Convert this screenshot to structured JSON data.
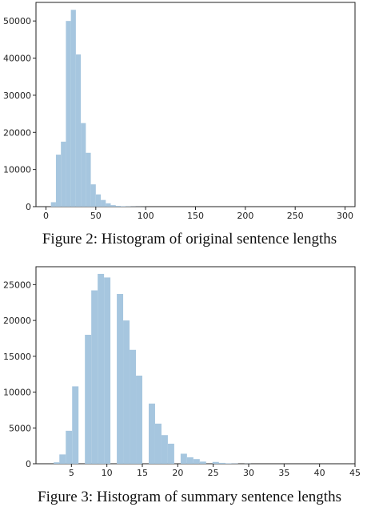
{
  "colors": {
    "bar": "#a6c6df",
    "axis": "#222222",
    "background": "#ffffff"
  },
  "chart_data": [
    {
      "type": "bar",
      "title": "",
      "xlabel": "",
      "ylabel": "",
      "caption": "Figure 2: Histogram of original sentence lengths",
      "xlim": [
        -10,
        310
      ],
      "ylim": [
        0,
        55000
      ],
      "xticks": [
        0,
        50,
        100,
        150,
        200,
        250,
        300
      ],
      "yticks": [
        0,
        10000,
        20000,
        30000,
        40000,
        50000
      ],
      "grid": false,
      "bins": [
        {
          "x0": 5,
          "x1": 10,
          "value": 1200
        },
        {
          "x0": 10,
          "x1": 15,
          "value": 14000
        },
        {
          "x0": 15,
          "x1": 20,
          "value": 17500
        },
        {
          "x0": 20,
          "x1": 25,
          "value": 50000
        },
        {
          "x0": 25,
          "x1": 30,
          "value": 53000
        },
        {
          "x0": 30,
          "x1": 35,
          "value": 41000
        },
        {
          "x0": 35,
          "x1": 40,
          "value": 22500
        },
        {
          "x0": 40,
          "x1": 45,
          "value": 14500
        },
        {
          "x0": 45,
          "x1": 50,
          "value": 6000
        },
        {
          "x0": 50,
          "x1": 55,
          "value": 3300
        },
        {
          "x0": 55,
          "x1": 60,
          "value": 1800
        },
        {
          "x0": 60,
          "x1": 65,
          "value": 900
        },
        {
          "x0": 65,
          "x1": 70,
          "value": 400
        },
        {
          "x0": 70,
          "x1": 75,
          "value": 200
        },
        {
          "x0": 75,
          "x1": 80,
          "value": 120
        },
        {
          "x0": 80,
          "x1": 85,
          "value": 80
        },
        {
          "x0": 85,
          "x1": 90,
          "value": 50
        },
        {
          "x0": 90,
          "x1": 95,
          "value": 30
        },
        {
          "x0": 95,
          "x1": 100,
          "value": 20
        }
      ]
    },
    {
      "type": "bar",
      "title": "",
      "xlabel": "",
      "ylabel": "",
      "caption": "Figure 3: Histogram of summary sentence lengths",
      "xlim": [
        0,
        45
      ],
      "ylim": [
        0,
        27500
      ],
      "xticks": [
        5,
        10,
        15,
        20,
        25,
        30,
        35,
        40,
        45
      ],
      "yticks": [
        0,
        5000,
        10000,
        15000,
        20000,
        25000
      ],
      "grid": false,
      "bins": [
        {
          "x0": 2.5,
          "x1": 3.3,
          "value": 200
        },
        {
          "x0": 3.3,
          "x1": 4.2,
          "value": 1300
        },
        {
          "x0": 4.2,
          "x1": 5.1,
          "value": 4600
        },
        {
          "x0": 5.1,
          "x1": 6.0,
          "value": 10800
        },
        {
          "x0": 6.9,
          "x1": 7.8,
          "value": 18000
        },
        {
          "x0": 7.8,
          "x1": 8.7,
          "value": 24200
        },
        {
          "x0": 8.7,
          "x1": 9.6,
          "value": 26500
        },
        {
          "x0": 9.6,
          "x1": 10.5,
          "value": 26000
        },
        {
          "x0": 11.4,
          "x1": 12.3,
          "value": 23700
        },
        {
          "x0": 12.3,
          "x1": 13.2,
          "value": 20000
        },
        {
          "x0": 13.2,
          "x1": 14.1,
          "value": 15900
        },
        {
          "x0": 14.1,
          "x1": 15.0,
          "value": 12300
        },
        {
          "x0": 15.9,
          "x1": 16.8,
          "value": 8400
        },
        {
          "x0": 16.8,
          "x1": 17.7,
          "value": 5600
        },
        {
          "x0": 17.7,
          "x1": 18.6,
          "value": 4000
        },
        {
          "x0": 18.6,
          "x1": 19.5,
          "value": 2800
        },
        {
          "x0": 20.4,
          "x1": 21.3,
          "value": 1400
        },
        {
          "x0": 21.3,
          "x1": 22.2,
          "value": 900
        },
        {
          "x0": 22.2,
          "x1": 23.1,
          "value": 650
        },
        {
          "x0": 23.1,
          "x1": 24.0,
          "value": 300
        },
        {
          "x0": 24.9,
          "x1": 25.8,
          "value": 250
        },
        {
          "x0": 25.8,
          "x1": 26.7,
          "value": 120
        },
        {
          "x0": 26.7,
          "x1": 27.6,
          "value": 60
        },
        {
          "x0": 27.6,
          "x1": 28.5,
          "value": 40
        },
        {
          "x0": 29.4,
          "x1": 30.3,
          "value": 20
        }
      ]
    }
  ]
}
